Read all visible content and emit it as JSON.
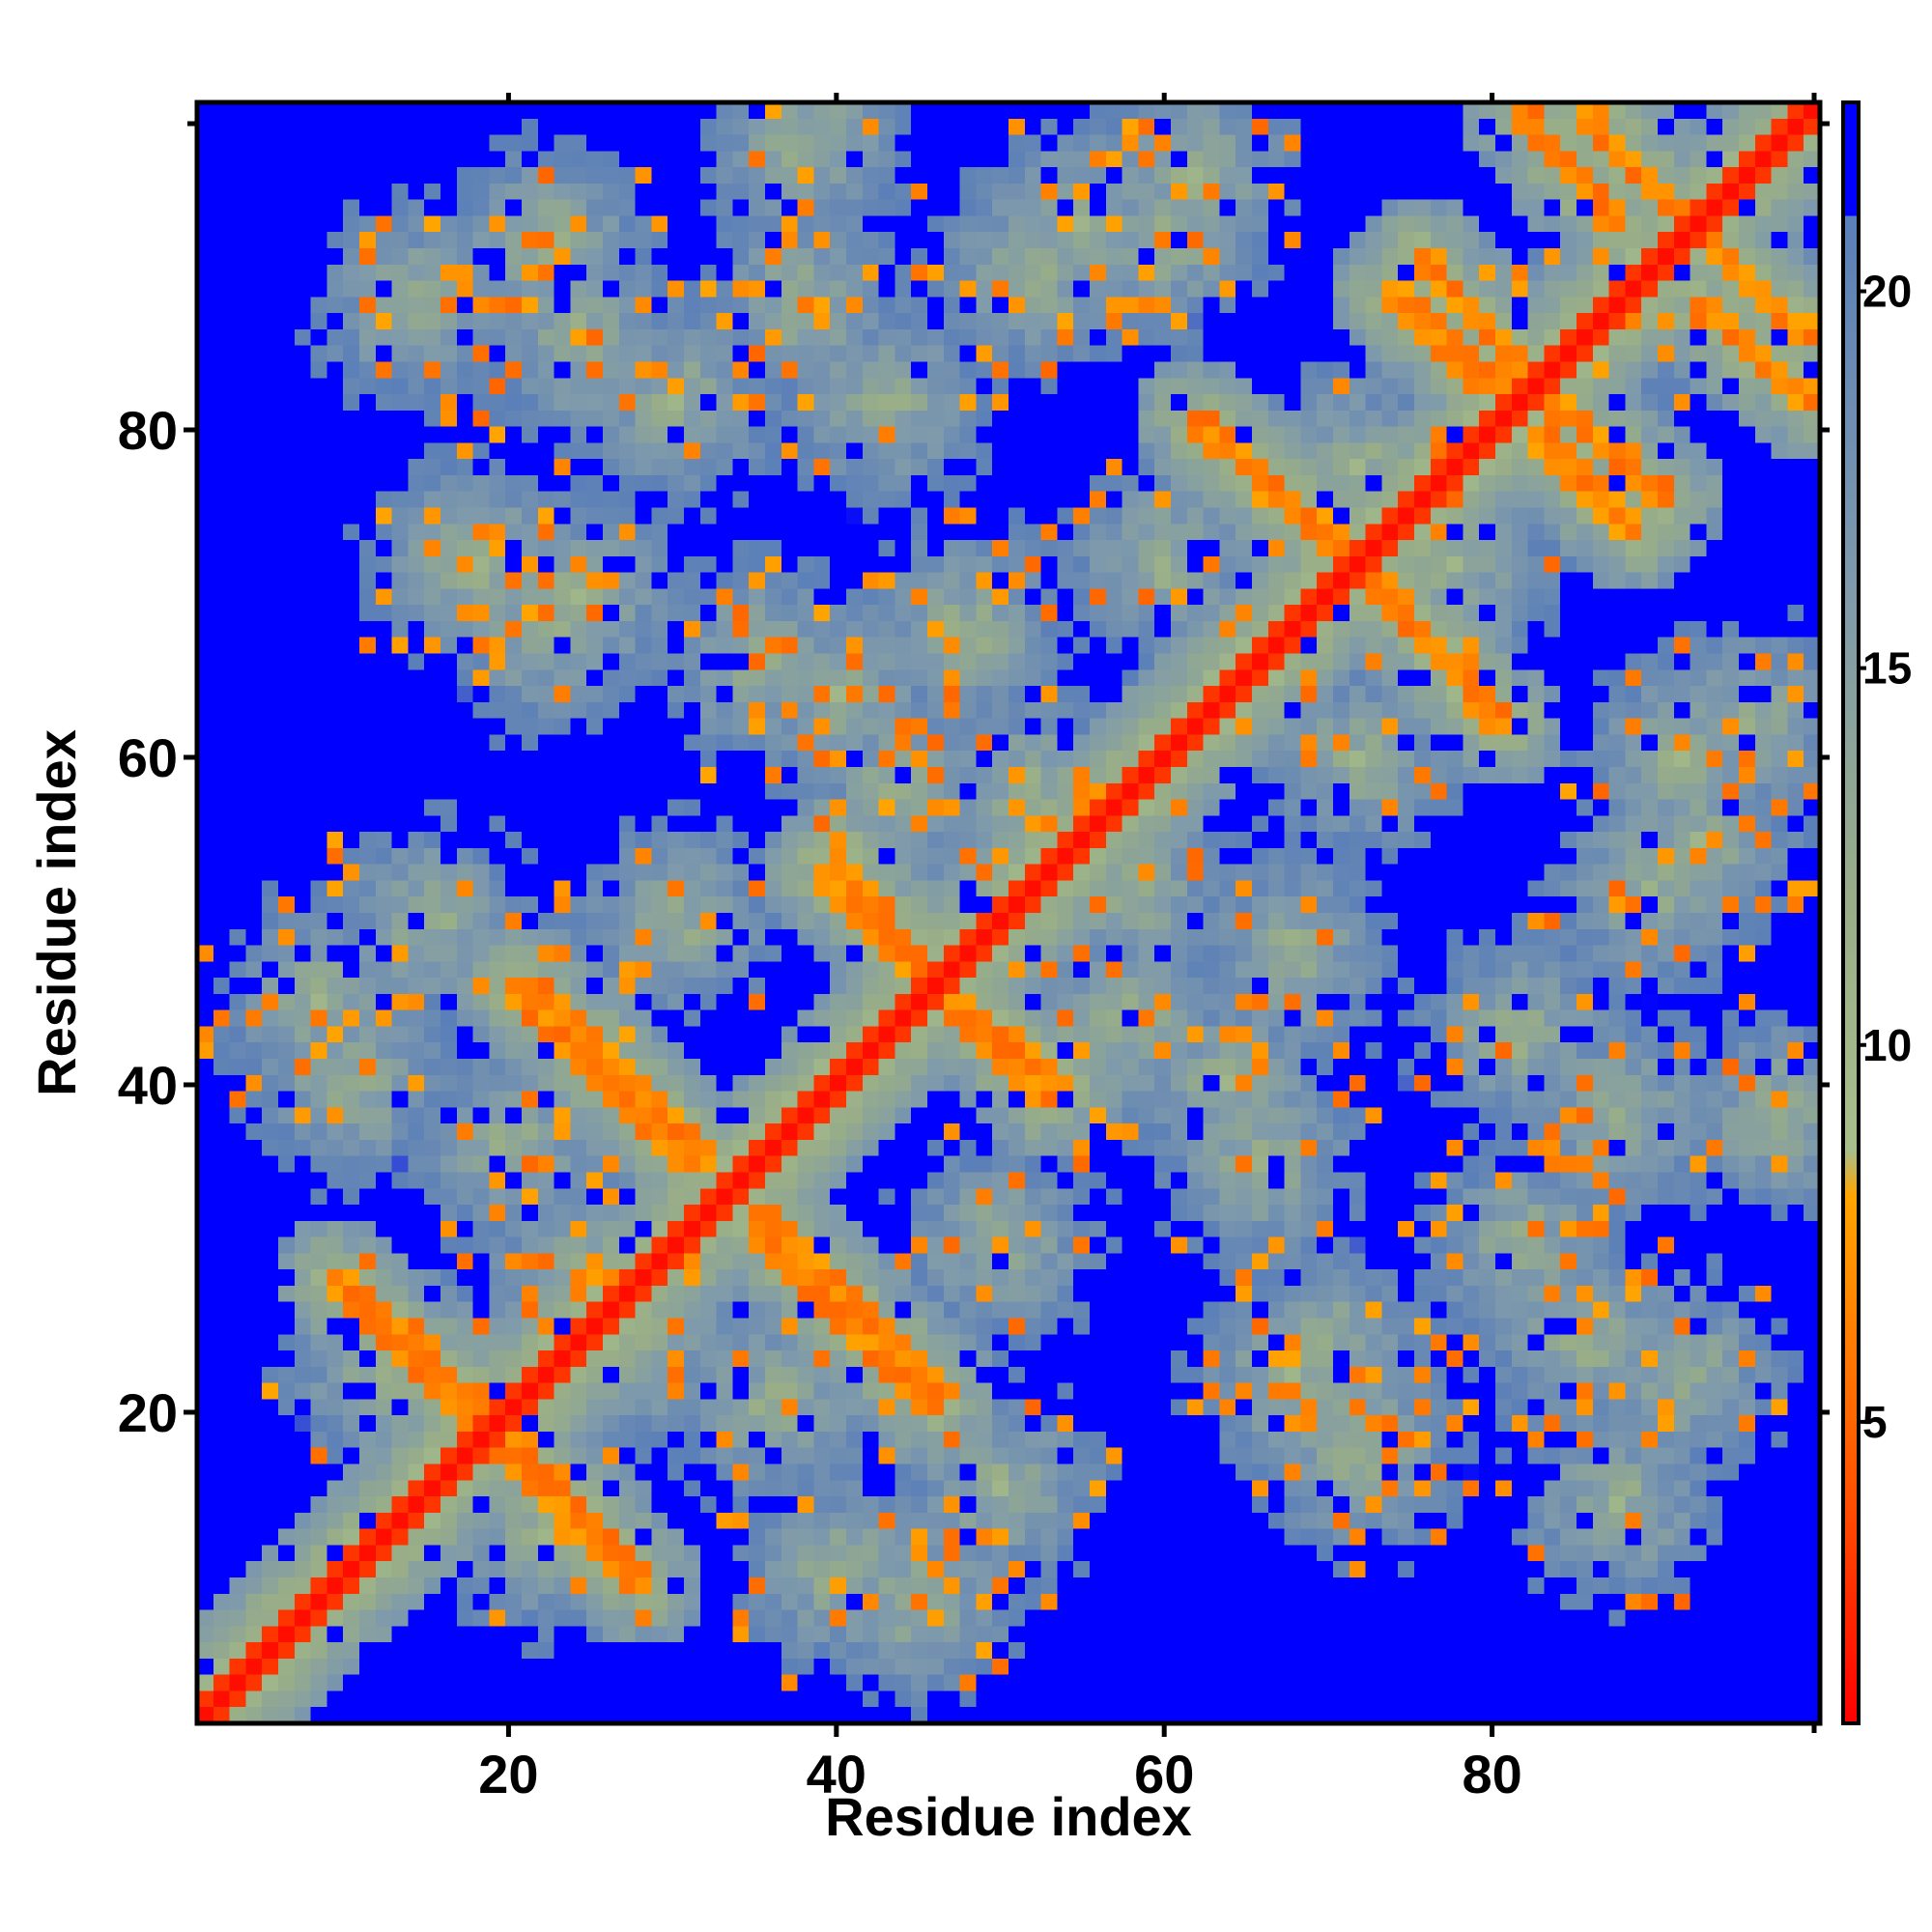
{
  "chart_data": {
    "type": "heatmap",
    "title": "",
    "xlabel": "Residue index",
    "ylabel": "Residue index",
    "n_residues": 100,
    "xlim": [
      1,
      100
    ],
    "ylim": [
      1,
      100
    ],
    "x_ticks": [
      20,
      40,
      60,
      80
    ],
    "y_ticks": [
      20,
      40,
      60,
      80
    ],
    "colorbar": {
      "ticks": [
        5,
        10,
        15,
        20
      ],
      "range": [
        1,
        21
      ],
      "note_above_max": "distance > 21 shown as blue",
      "stops": [
        {
          "value": 1,
          "color": "#ff0000"
        },
        {
          "value": 4,
          "color": "#ff5000"
        },
        {
          "value": 8,
          "color": "#ffa500"
        },
        {
          "value": 8.6,
          "color": "#a8bf8c"
        },
        {
          "value": 12,
          "color": "#98ad88"
        },
        {
          "value": 16,
          "color": "#7f9aab"
        },
        {
          "value": 21,
          "color": "#5b7fb8"
        },
        {
          "value": 21.01,
          "color": "#0000ff"
        }
      ]
    },
    "structure": {
      "diagonal": "contacts along i = j (distance ~1-4)",
      "contact_lines": [
        {
          "from": [
            10,
            27
          ],
          "to": [
            18,
            19
          ]
        },
        {
          "from": [
            20,
            18
          ],
          "to": [
            28,
            9
          ]
        },
        {
          "from": [
            21,
            46
          ],
          "to": [
            32,
            35
          ]
        },
        {
          "from": [
            35,
            31
          ],
          "to": [
            46,
            20
          ]
        },
        {
          "from": [
            40,
            54
          ],
          "to": [
            45,
            47
          ]
        },
        {
          "from": [
            46,
            46
          ],
          "to": [
            53,
            39
          ]
        },
        {
          "from": [
            62,
            81
          ],
          "to": [
            70,
            74
          ]
        },
        {
          "from": [
            73,
            71
          ],
          "to": [
            80,
            63
          ]
        },
        {
          "from": [
            86,
            100
          ],
          "to": [
            93,
            92
          ]
        },
        {
          "from": [
            93,
            88
          ],
          "to": [
            100,
            82
          ]
        },
        {
          "from": [
            76,
            91
          ],
          "to": [
            82,
            84
          ]
        },
        {
          "from": [
            83,
            80
          ],
          "to": [
            89,
            74
          ]
        }
      ],
      "clusters": [
        [
          12,
          22
        ],
        [
          24,
          28
        ],
        [
          36,
          20
        ],
        [
          40,
          10
        ],
        [
          8,
          45
        ],
        [
          15,
          50
        ],
        [
          17,
          72
        ],
        [
          24,
          70
        ],
        [
          40,
          64
        ],
        [
          43,
          82
        ],
        [
          38,
          98
        ],
        [
          22,
          92
        ],
        [
          55,
          93
        ],
        [
          60,
          72
        ],
        [
          68,
          48
        ],
        [
          66,
          35
        ],
        [
          68,
          22
        ],
        [
          72,
          18
        ],
        [
          86,
          24
        ],
        [
          88,
          38
        ],
        [
          90,
          52
        ],
        [
          78,
          72
        ],
        [
          92,
          60
        ],
        [
          85,
          85
        ],
        [
          58,
          44
        ],
        [
          50,
          30
        ],
        [
          14,
          88
        ],
        [
          62,
          96
        ],
        [
          30,
          82
        ],
        [
          52,
          58
        ]
      ]
    }
  }
}
